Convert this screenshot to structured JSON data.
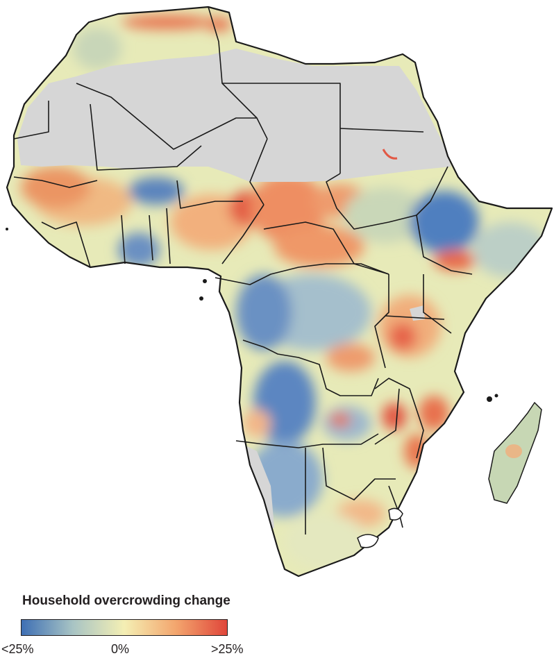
{
  "map": {
    "region": "Africa",
    "colors": {
      "no_data": "#d9d9d9",
      "border": "#1a1a1a",
      "low": "#3e6fb4",
      "mid_low": "#a8c4c4",
      "neutral": "#f4efb4",
      "mid_high": "#f3a66e",
      "high": "#e0463a"
    }
  },
  "legend": {
    "title": "Household overcrowding change",
    "min_label": "<25%",
    "mid_label": "0%",
    "max_label": ">25%"
  }
}
